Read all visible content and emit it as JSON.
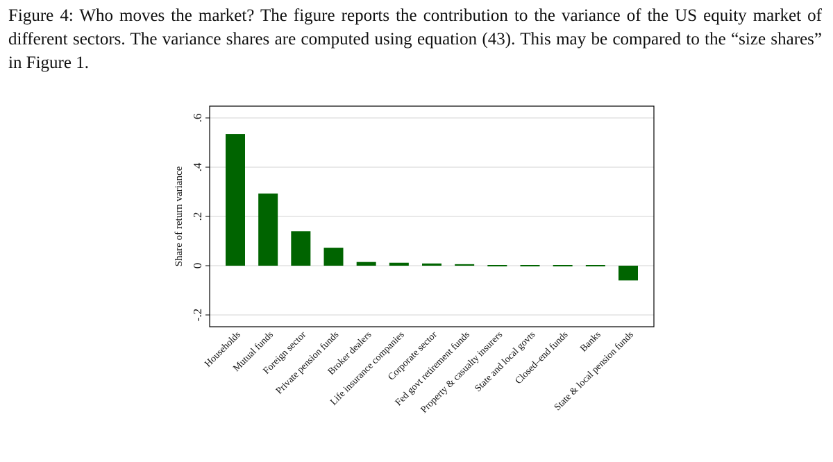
{
  "caption": {
    "text": "Figure 4: Who moves the market? The figure reports the contribution to the variance of the US equity market of different sectors. The variance shares are computed using equation (43). This may be compared to the “size shares” in Figure 1."
  },
  "colors": {
    "bar": "#006400",
    "gridline": "#dcdcdc",
    "frame": "#000000"
  },
  "chart_data": {
    "type": "bar",
    "title": "",
    "xlabel": "",
    "ylabel": "Share of return variance",
    "ylim": [
      -0.25,
      0.65
    ],
    "yticks": [
      -0.2,
      0,
      0.2,
      0.4,
      0.6
    ],
    "ytick_labels": [
      "-.2",
      "0",
      ".2",
      ".4",
      ".6"
    ],
    "grid": true,
    "categories": [
      "Households",
      "Mutual funds",
      "Foreign sector",
      "Private pension funds",
      "Broker dealers",
      "Life insurance companies",
      "Corporate sector",
      "Fed govt retirement funds",
      "Property & casualty insurers",
      "State and local govts",
      "Closed–end funds",
      "Banks",
      "State & local pension funds"
    ],
    "values": [
      0.535,
      0.293,
      0.14,
      0.073,
      0.015,
      0.012,
      0.009,
      0.006,
      0.004,
      0.003,
      0.002,
      0.001,
      -0.06
    ]
  }
}
